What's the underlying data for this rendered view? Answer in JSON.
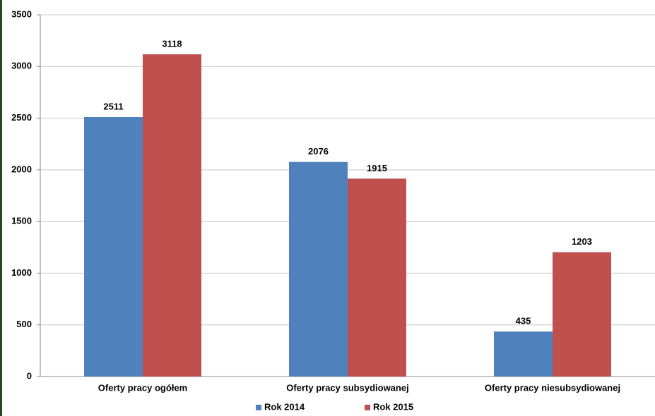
{
  "chart_data": {
    "type": "bar",
    "categories": [
      "Oferty pracy ogółem",
      "Oferty pracy subsydiowanej",
      "Oferty pracy niesubsydiowanej"
    ],
    "series": [
      {
        "name": "Rok 2014",
        "color": "#4f81bd",
        "values": [
          2511,
          2076,
          435
        ]
      },
      {
        "name": "Rok 2015",
        "color": "#c0504d",
        "values": [
          3118,
          1915,
          1203
        ]
      }
    ],
    "ylim": [
      0,
      3500
    ],
    "yticks": [
      0,
      500,
      1000,
      1500,
      2000,
      2500,
      3000,
      3500
    ],
    "grid": true,
    "legend": "bottom"
  }
}
